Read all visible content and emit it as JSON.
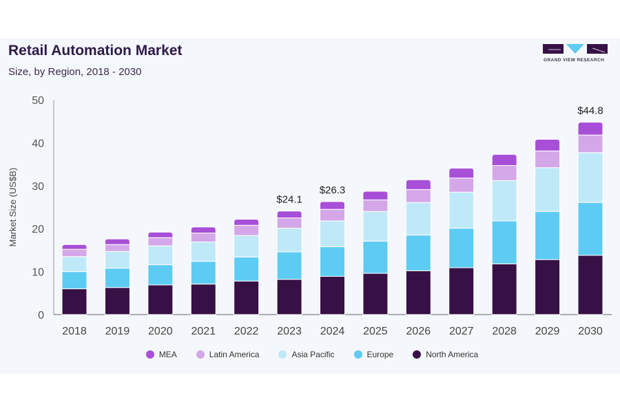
{
  "title": "Retail Automation Market",
  "subtitle": "Size, by Region, 2018 - 2030",
  "logo_text": "GRAND VIEW RESEARCH",
  "chart_data": {
    "type": "bar",
    "stacked": true,
    "title": "Retail Automation Market",
    "subtitle": "Size, by Region, 2018 - 2030",
    "xlabel": "",
    "ylabel": "Market Size (US$B)",
    "ylim": [
      0,
      50
    ],
    "yticks": [
      0,
      10,
      20,
      30,
      40,
      50
    ],
    "grid": false,
    "legend_position": "bottom",
    "categories": [
      "2018",
      "2019",
      "2020",
      "2021",
      "2022",
      "2023",
      "2024",
      "2025",
      "2026",
      "2027",
      "2028",
      "2029",
      "2030"
    ],
    "series": [
      {
        "name": "North America",
        "color": "#371146",
        "values": [
          6.0,
          6.3,
          6.9,
          7.1,
          7.8,
          8.2,
          8.9,
          9.6,
          10.2,
          10.9,
          11.8,
          12.8,
          13.8
        ]
      },
      {
        "name": "Europe",
        "color": "#5ecbf3",
        "values": [
          4.0,
          4.5,
          4.7,
          5.3,
          5.6,
          6.4,
          6.9,
          7.5,
          8.3,
          9.2,
          10.0,
          11.2,
          12.3
        ]
      },
      {
        "name": "Asia Pacific",
        "color": "#bfe9f8",
        "values": [
          3.5,
          3.9,
          4.4,
          4.5,
          5.0,
          5.5,
          6.0,
          6.9,
          7.6,
          8.4,
          9.4,
          10.2,
          11.6
        ]
      },
      {
        "name": "Latin America",
        "color": "#d4a8e8",
        "values": [
          1.7,
          1.6,
          1.9,
          2.1,
          2.4,
          2.4,
          2.7,
          2.7,
          3.0,
          3.3,
          3.5,
          3.9,
          4.1
        ]
      },
      {
        "name": "MEA",
        "color": "#a84fd8",
        "values": [
          1.1,
          1.3,
          1.3,
          1.4,
          1.4,
          1.6,
          1.8,
          2.0,
          2.3,
          2.3,
          2.6,
          2.7,
          3.0
        ]
      }
    ],
    "annotations": [
      {
        "category": "2023",
        "text": "$24.1"
      },
      {
        "category": "2024",
        "text": "$26.3"
      },
      {
        "category": "2030",
        "text": "$44.8"
      }
    ],
    "legend_order": [
      "MEA",
      "Latin America",
      "Asia Pacific",
      "Europe",
      "North America"
    ]
  }
}
